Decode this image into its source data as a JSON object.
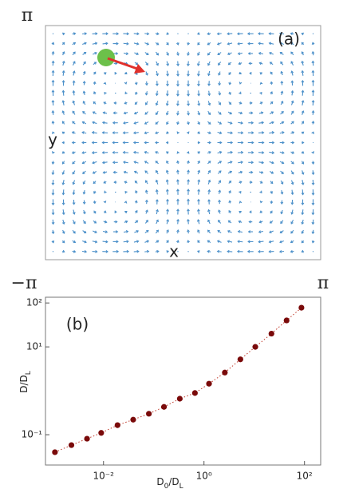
{
  "chart_data": [
    {
      "type": "vector_field",
      "panel_label": "(a)",
      "xlabel": "x",
      "ylabel": "y",
      "y_top_label": "π",
      "x_left_label": "−π",
      "x_right_label": "π"
    },
    {
      "type": "scatter",
      "panel_label": "(b)",
      "xlabel": [
        "D",
        "0",
        "/D",
        "L"
      ],
      "ylabel": [
        "D/D",
        "L"
      ],
      "xlog": true,
      "ylog": true,
      "color": "#7a0a0a",
      "xlim": [
        0.0007,
        210
      ],
      "ylim": [
        0.0204,
        135
      ],
      "xticks": [
        {
          "value": 0.01,
          "label": "10⁻²"
        },
        {
          "value": 1,
          "label": "10⁰"
        },
        {
          "value": 100,
          "label": "10²"
        }
      ],
      "yticks": [
        {
          "value": 0.1,
          "label": "10⁻¹"
        },
        {
          "value": 10,
          "label": "10¹"
        },
        {
          "value": 100,
          "label": "10²"
        }
      ],
      "x": [
        0.00108,
        0.0023,
        0.0047,
        0.009,
        0.019,
        0.039,
        0.08,
        0.16,
        0.33,
        0.66,
        1.26,
        2.6,
        5.3,
        10.5,
        22,
        44,
        87
      ],
      "y": [
        0.04,
        0.058,
        0.081,
        0.11,
        0.165,
        0.22,
        0.3,
        0.43,
        0.66,
        0.89,
        1.45,
        2.6,
        5.2,
        10,
        20,
        40,
        78
      ]
    }
  ]
}
